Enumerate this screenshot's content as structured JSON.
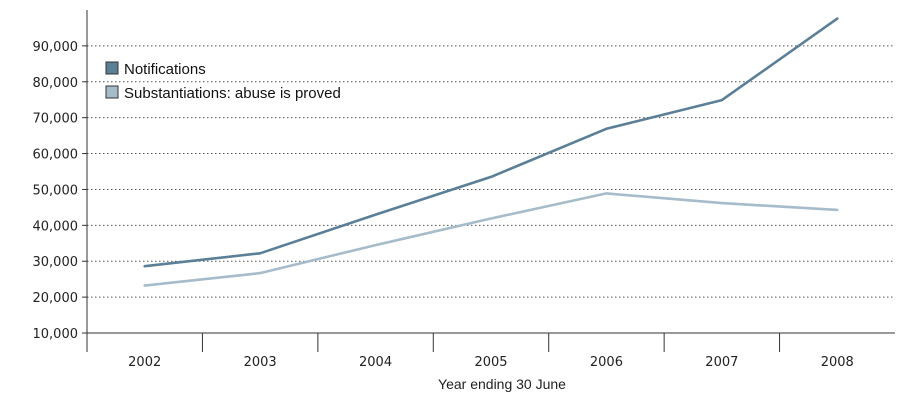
{
  "chart_data": {
    "type": "line",
    "categories": [
      "2002",
      "2003",
      "2004",
      "2005",
      "2006",
      "2007",
      "2008"
    ],
    "series": [
      {
        "name": "Notifications",
        "color": "#5a7f96",
        "values": [
          28600,
          32200,
          43000,
          53500,
          66900,
          74900,
          97600
        ]
      },
      {
        "name": "Substantiations: abuse is proved",
        "color": "#a6bccb",
        "values": [
          23200,
          26700,
          34500,
          41900,
          48900,
          46200,
          44300
        ]
      }
    ],
    "title": "",
    "xlabel": "Year ending 30 June",
    "ylabel": "",
    "ylim": [
      10000,
      100000
    ],
    "yticks": [
      10000,
      20000,
      30000,
      40000,
      50000,
      60000,
      70000,
      80000,
      90000
    ],
    "ytick_labels": [
      "10,000",
      "20,000",
      "30,000",
      "40,000",
      "50,000",
      "60,000",
      "70,000",
      "80,000",
      "90,000"
    ],
    "grid": "horizontal dotted",
    "legend_position": "top-left"
  }
}
